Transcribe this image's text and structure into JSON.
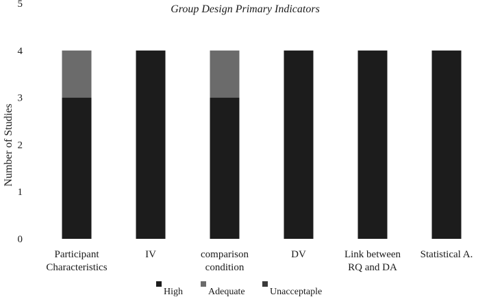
{
  "chart_data": {
    "type": "bar",
    "stacked": true,
    "title": "Group Design Primary Indicators",
    "xlabel": "",
    "ylabel": "Number of Studies",
    "ylim": [
      0,
      5
    ],
    "yticks": [
      "0",
      "1",
      "2",
      "3",
      "4",
      "5"
    ],
    "grid": false,
    "legend_position": "bottom",
    "categories": [
      [
        "Participant",
        "Characteristics"
      ],
      [
        "IV"
      ],
      [
        "comparison",
        "condition"
      ],
      [
        "DV"
      ],
      [
        "Link between",
        "RQ and DA"
      ],
      [
        "Statistical A."
      ]
    ],
    "series": [
      {
        "name": "High",
        "color": "#1c1c1c",
        "values": [
          3,
          4,
          3,
          4,
          4,
          4
        ]
      },
      {
        "name": "Adequate",
        "color": "#6b6b6b",
        "values": [
          1,
          0,
          1,
          0,
          0,
          0
        ]
      },
      {
        "name": "Unacceptaple",
        "color": "#3a3a3a",
        "values": [
          0,
          0,
          0,
          0,
          0,
          0
        ]
      }
    ]
  }
}
